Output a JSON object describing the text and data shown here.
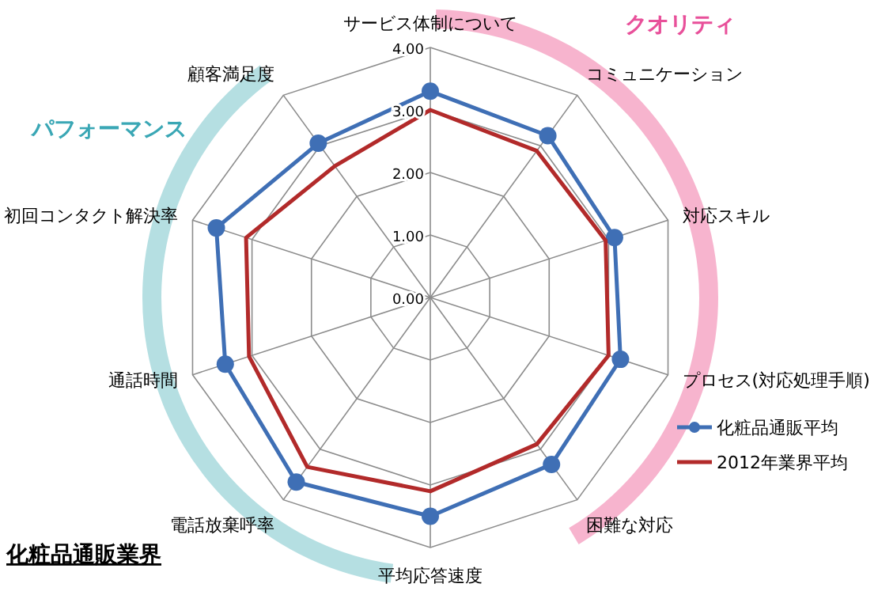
{
  "chart_data": {
    "type": "radar",
    "title": "化粧品通販業界",
    "categories": [
      "サービス体制について",
      "コミュニケーション",
      "対応スキル",
      "プロセス(対応処理手順)",
      "困難な対応",
      "平均応答速度",
      "電話放棄呼率",
      "通話時間",
      "初回コンタクト解決率",
      "顧客満足度"
    ],
    "series": [
      {
        "name": "化粧品通販平均",
        "color": "#3f6fb5",
        "marker": "circle",
        "values": [
          3.3,
          3.2,
          3.1,
          3.2,
          3.3,
          3.5,
          3.65,
          3.45,
          3.6,
          3.05
        ]
      },
      {
        "name": "2012年業界平均",
        "color": "#b22a2a",
        "marker": "none",
        "values": [
          3.0,
          2.9,
          2.95,
          3.0,
          2.9,
          3.1,
          3.35,
          3.05,
          3.1,
          2.6
        ]
      }
    ],
    "ylim": [
      0,
      4
    ],
    "yticks": [
      {
        "value": 0,
        "label": "0.00"
      },
      {
        "value": 1,
        "label": "1.00"
      },
      {
        "value": 2,
        "label": "2.00"
      },
      {
        "value": 3,
        "label": "3.00"
      },
      {
        "value": 4,
        "label": "4.00"
      }
    ],
    "grid": true,
    "legend": "right",
    "annotations": [
      "クオリティ",
      "パフォーマンス"
    ]
  }
}
